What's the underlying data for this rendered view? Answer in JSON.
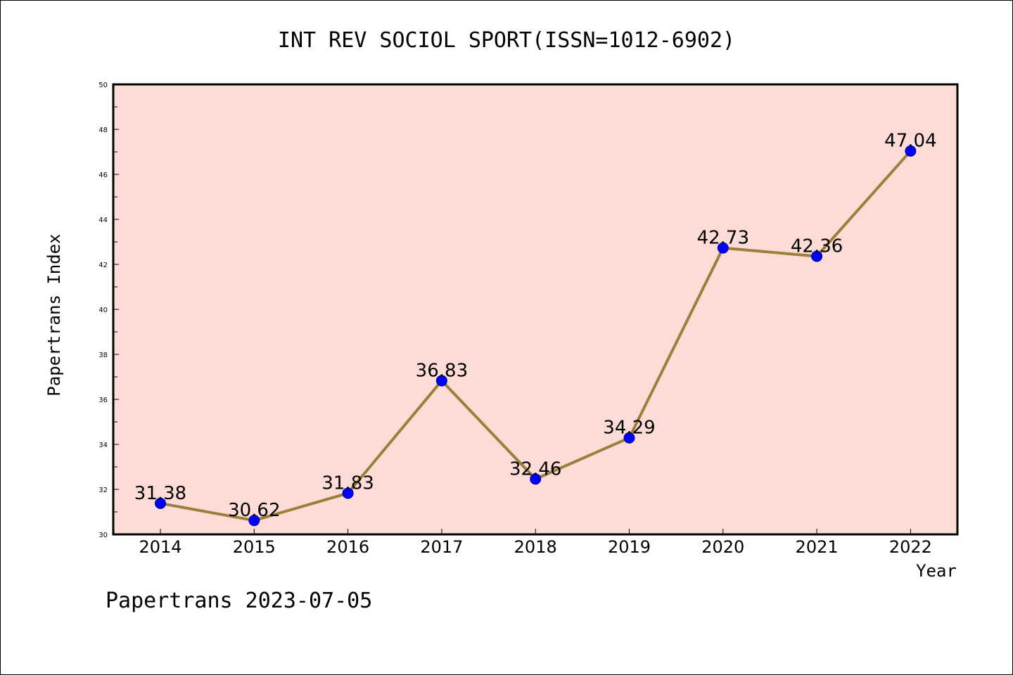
{
  "chart_data": {
    "type": "line",
    "title": "INT REV SOCIOL SPORT(ISSN=1012-6902)",
    "xlabel": "Year",
    "ylabel": "Papertrans Index",
    "categories": [
      "2014",
      "2015",
      "2016",
      "2017",
      "2018",
      "2019",
      "2020",
      "2021",
      "2022"
    ],
    "series": [
      {
        "values": [
          31.38,
          30.62,
          31.83,
          36.83,
          32.46,
          34.29,
          42.73,
          42.36,
          47.04
        ],
        "labels": [
          "31.38",
          "30.62",
          "31.83",
          "36.83",
          "32.46",
          "34.29",
          "42.73",
          "42.36",
          "47.04"
        ],
        "line_color": "#9b7f3a",
        "marker_color": "#0000ff"
      }
    ],
    "ylim": [
      30,
      50
    ],
    "yticks": [
      "30",
      "32",
      "34",
      "36",
      "38",
      "40",
      "42",
      "44",
      "46",
      "48",
      "50"
    ],
    "plot_background": "#fddcd8",
    "grid": false,
    "legend": "none"
  },
  "footer": "Papertrans 2023-07-05"
}
